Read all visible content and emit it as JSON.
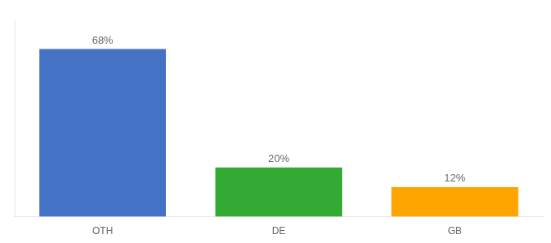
{
  "chart_data": {
    "type": "bar",
    "categories": [
      "OTH",
      "DE",
      "GB"
    ],
    "values": [
      68,
      20,
      12
    ],
    "value_labels": [
      "68%",
      "20%",
      "12%"
    ],
    "data_labels": true,
    "colors": [
      "#4472C4",
      "#33AA33",
      "#FFA500"
    ],
    "ylim": [
      0,
      80
    ],
    "yticks": [],
    "tick_labels": "x",
    "grid": false
  }
}
